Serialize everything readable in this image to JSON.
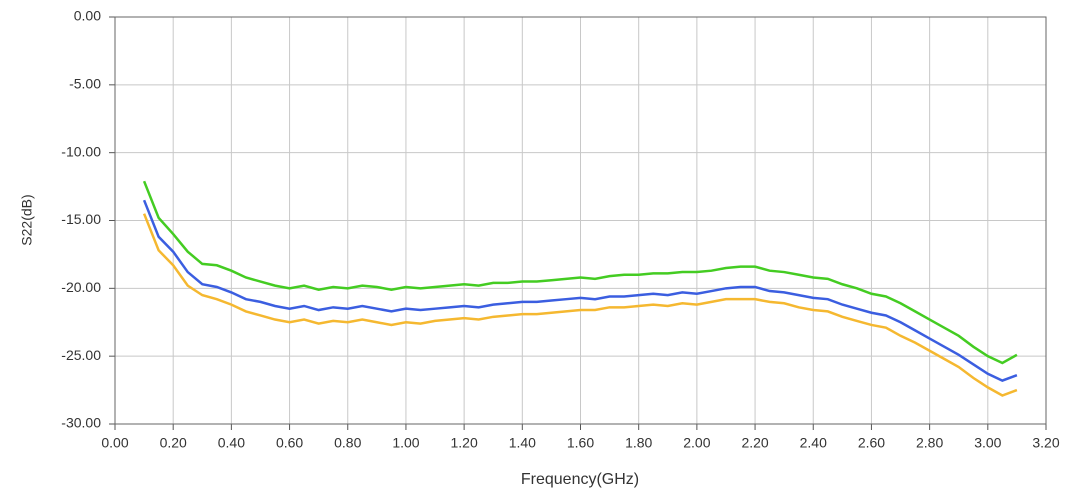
{
  "chart_data": {
    "type": "line",
    "xlabel": "Frequency(GHz)",
    "ylabel": "S22(dB)",
    "x": [
      0.1,
      0.15,
      0.2,
      0.25,
      0.3,
      0.35,
      0.4,
      0.45,
      0.5,
      0.55,
      0.6,
      0.65,
      0.7,
      0.75,
      0.8,
      0.85,
      0.9,
      0.95,
      1.0,
      1.05,
      1.1,
      1.15,
      1.2,
      1.25,
      1.3,
      1.35,
      1.4,
      1.45,
      1.5,
      1.55,
      1.6,
      1.65,
      1.7,
      1.75,
      1.8,
      1.85,
      1.9,
      1.95,
      2.0,
      2.05,
      2.1,
      2.15,
      2.2,
      2.25,
      2.3,
      2.35,
      2.4,
      2.45,
      2.5,
      2.55,
      2.6,
      2.65,
      2.7,
      2.75,
      2.8,
      2.85,
      2.9,
      2.95,
      3.0,
      3.05,
      3.1
    ],
    "series": [
      {
        "color": "#44cc22",
        "values": [
          -12.1,
          -14.8,
          -16.0,
          -17.3,
          -18.2,
          -18.3,
          -18.7,
          -19.2,
          -19.5,
          -19.8,
          -20.0,
          -19.8,
          -20.1,
          -19.9,
          -20.0,
          -19.8,
          -19.9,
          -20.1,
          -19.9,
          -20.0,
          -19.9,
          -19.8,
          -19.7,
          -19.8,
          -19.6,
          -19.6,
          -19.5,
          -19.5,
          -19.4,
          -19.3,
          -19.2,
          -19.3,
          -19.1,
          -19.0,
          -19.0,
          -18.9,
          -18.9,
          -18.8,
          -18.8,
          -18.7,
          -18.5,
          -18.4,
          -18.4,
          -18.7,
          -18.8,
          -19.0,
          -19.2,
          -19.3,
          -19.7,
          -20.0,
          -20.4,
          -20.6,
          -21.1,
          -21.7,
          -22.3,
          -22.9,
          -23.5,
          -24.3,
          -25.0,
          -25.5,
          -24.9
        ]
      },
      {
        "color": "#3b5ee0",
        "values": [
          -13.5,
          -16.2,
          -17.3,
          -18.8,
          -19.7,
          -19.9,
          -20.3,
          -20.8,
          -21.0,
          -21.3,
          -21.5,
          -21.3,
          -21.6,
          -21.4,
          -21.5,
          -21.3,
          -21.5,
          -21.7,
          -21.5,
          -21.6,
          -21.5,
          -21.4,
          -21.3,
          -21.4,
          -21.2,
          -21.1,
          -21.0,
          -21.0,
          -20.9,
          -20.8,
          -20.7,
          -20.8,
          -20.6,
          -20.6,
          -20.5,
          -20.4,
          -20.5,
          -20.3,
          -20.4,
          -20.2,
          -20.0,
          -19.9,
          -19.9,
          -20.2,
          -20.3,
          -20.5,
          -20.7,
          -20.8,
          -21.2,
          -21.5,
          -21.8,
          -22.0,
          -22.5,
          -23.1,
          -23.7,
          -24.3,
          -24.9,
          -25.6,
          -26.3,
          -26.8,
          -26.4
        ]
      },
      {
        "color": "#f5b830",
        "values": [
          -14.5,
          -17.2,
          -18.3,
          -19.8,
          -20.5,
          -20.8,
          -21.2,
          -21.7,
          -22.0,
          -22.3,
          -22.5,
          -22.3,
          -22.6,
          -22.4,
          -22.5,
          -22.3,
          -22.5,
          -22.7,
          -22.5,
          -22.6,
          -22.4,
          -22.3,
          -22.2,
          -22.3,
          -22.1,
          -22.0,
          -21.9,
          -21.9,
          -21.8,
          -21.7,
          -21.6,
          -21.6,
          -21.4,
          -21.4,
          -21.3,
          -21.2,
          -21.3,
          -21.1,
          -21.2,
          -21.0,
          -20.8,
          -20.8,
          -20.8,
          -21.0,
          -21.1,
          -21.4,
          -21.6,
          -21.7,
          -22.1,
          -22.4,
          -22.7,
          -22.9,
          -23.5,
          -24.0,
          -24.6,
          -25.2,
          -25.8,
          -26.6,
          -27.3,
          -27.9,
          -27.5
        ]
      }
    ],
    "xlim": [
      0,
      3.2
    ],
    "xticks": [
      {
        "value": 0,
        "label": "0.00"
      },
      {
        "value": 0.2,
        "label": "0.20"
      },
      {
        "value": 0.4,
        "label": "0.40"
      },
      {
        "value": 0.6,
        "label": "0.60"
      },
      {
        "value": 0.8,
        "label": "0.80"
      },
      {
        "value": 1.0,
        "label": "1.00"
      },
      {
        "value": 1.2,
        "label": "1.20"
      },
      {
        "value": 1.4,
        "label": "1.40"
      },
      {
        "value": 1.6,
        "label": "1.60"
      },
      {
        "value": 1.8,
        "label": "1.80"
      },
      {
        "value": 2.0,
        "label": "2.00"
      },
      {
        "value": 2.2,
        "label": "2.20"
      },
      {
        "value": 2.4,
        "label": "2.40"
      },
      {
        "value": 2.6,
        "label": "2.60"
      },
      {
        "value": 2.8,
        "label": "2.80"
      },
      {
        "value": 3.0,
        "label": "3.00"
      },
      {
        "value": 3.2,
        "label": "3.20"
      }
    ],
    "ylim": [
      -30,
      0
    ],
    "yticks": [
      {
        "value": 0,
        "label": "0.00"
      },
      {
        "value": -5,
        "label": "-5.00"
      },
      {
        "value": -10,
        "label": "-10.00"
      },
      {
        "value": -15,
        "label": "-15.00"
      },
      {
        "value": -20,
        "label": "-20.00"
      },
      {
        "value": -25,
        "label": "-25.00"
      },
      {
        "value": -30,
        "label": "-30.00"
      }
    ],
    "grid": true
  }
}
